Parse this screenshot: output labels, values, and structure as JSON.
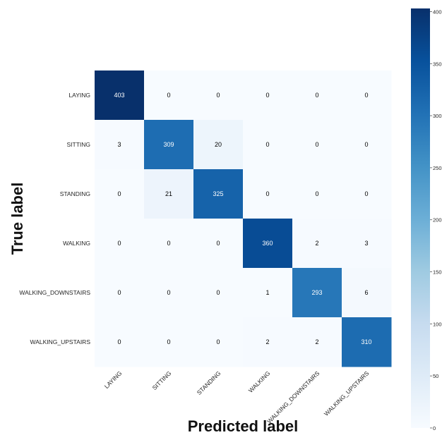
{
  "chart_data": {
    "type": "heatmap",
    "title": "",
    "xlabel": "Predicted label",
    "ylabel": "True label",
    "x_categories": [
      "LAYING",
      "SITTING",
      "STANDING",
      "WALKING",
      "WALKING_DOWNSTAIRS",
      "WALKING_UPSTAIRS"
    ],
    "y_categories": [
      "LAYING",
      "SITTING",
      "STANDING",
      "WALKING",
      "WALKING_DOWNSTAIRS",
      "WALKING_UPSTAIRS"
    ],
    "matrix": [
      [
        403,
        0,
        0,
        0,
        0,
        0
      ],
      [
        3,
        309,
        20,
        0,
        0,
        0
      ],
      [
        0,
        21,
        325,
        0,
        0,
        0
      ],
      [
        0,
        0,
        0,
        360,
        2,
        3
      ],
      [
        0,
        0,
        0,
        1,
        293,
        6
      ],
      [
        0,
        0,
        0,
        2,
        2,
        310
      ]
    ],
    "colormap": "Blues",
    "colorbar": {
      "min": 0,
      "max": 403,
      "ticks": [
        0,
        50,
        100,
        150,
        200,
        250,
        300,
        350,
        400
      ],
      "tick_labels": [
        "0",
        "50",
        "100",
        "150",
        "200",
        "250",
        "300",
        "350",
        "400"
      ]
    },
    "grid": false
  }
}
